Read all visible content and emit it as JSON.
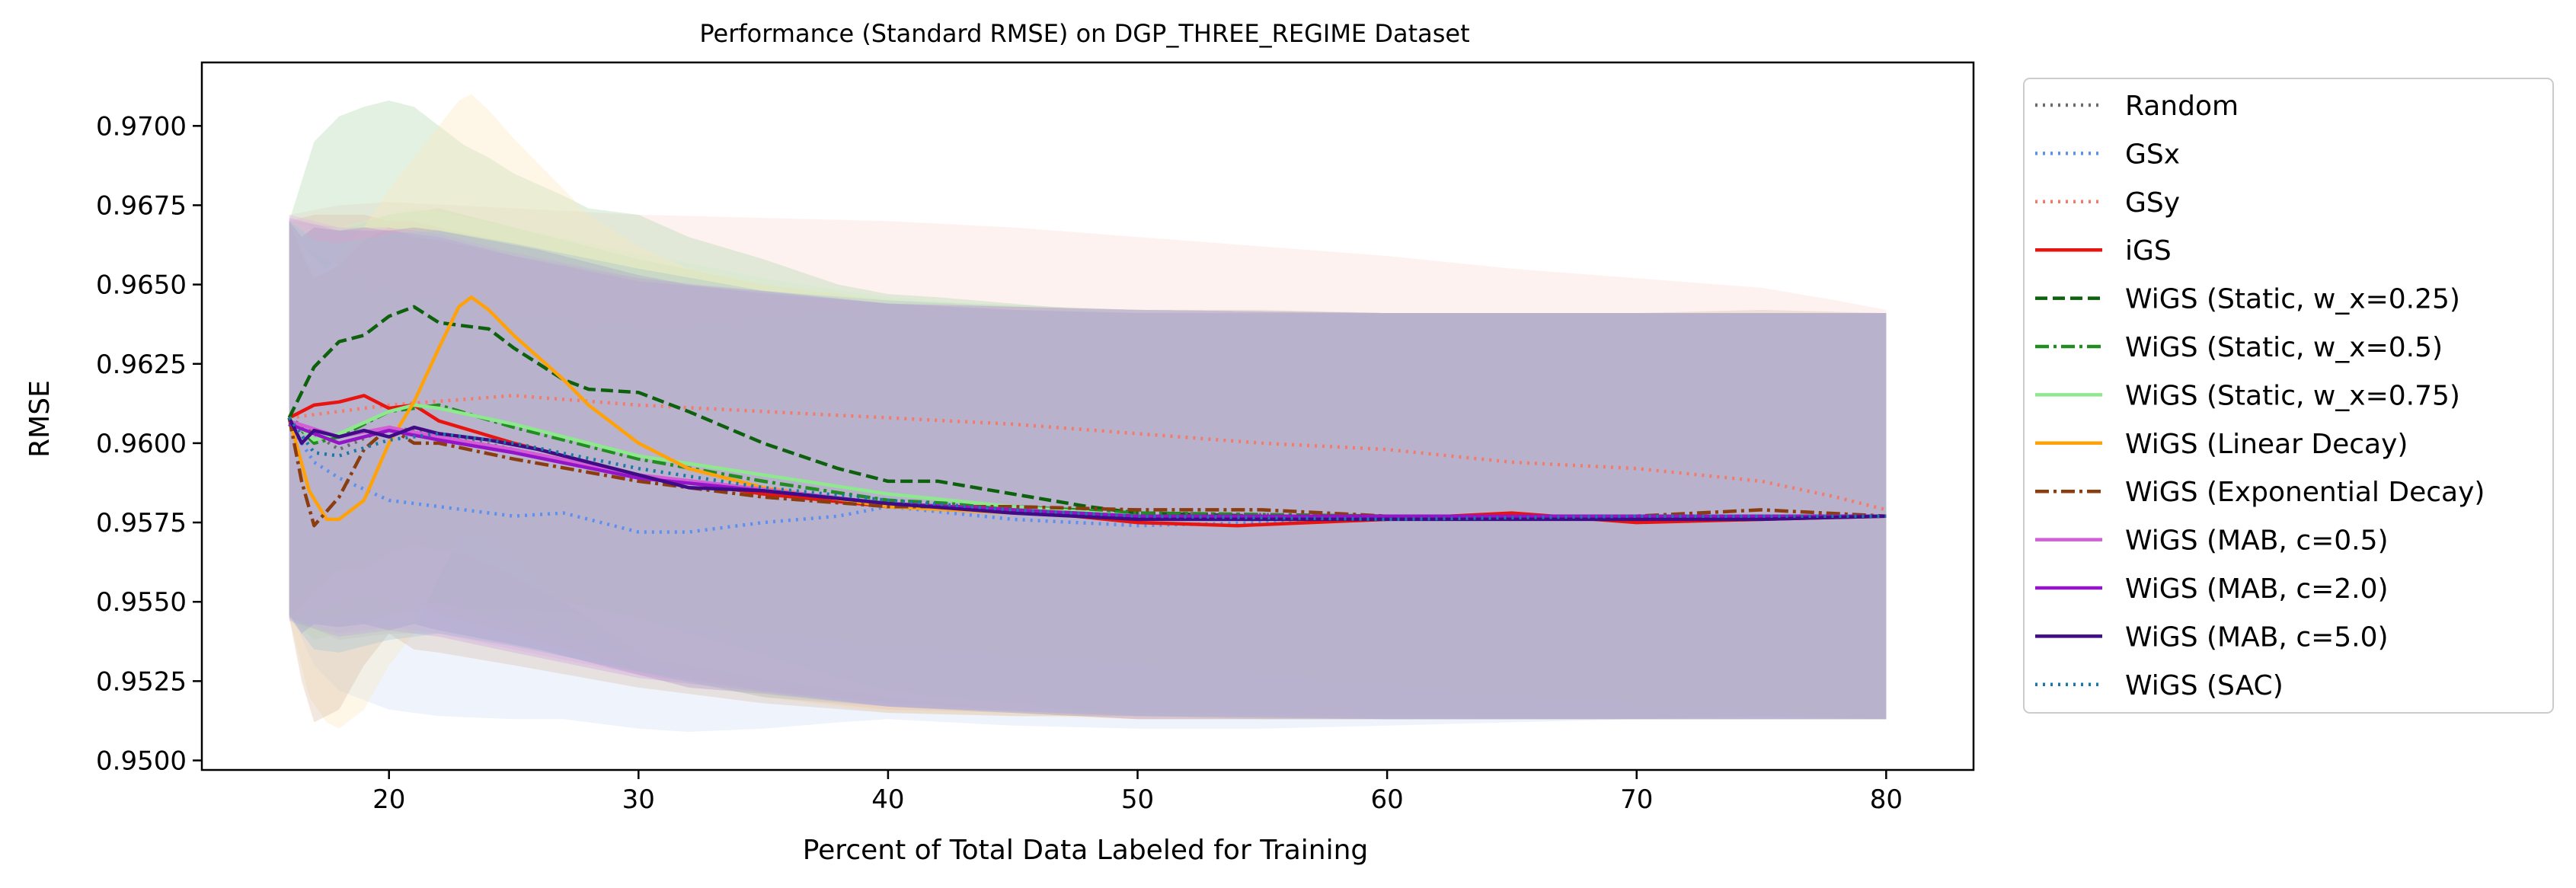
{
  "chart_data": {
    "type": "line",
    "title": "Performance (Standard RMSE) on DGP_THREE_REGIME Dataset",
    "xlabel": "Percent of Total Data Labeled for Training",
    "ylabel": "RMSE",
    "xlim": [
      12.5,
      83.5
    ],
    "ylim": [
      0.9497,
      0.972
    ],
    "xticks": [
      20,
      30,
      40,
      50,
      60,
      70,
      80
    ],
    "yticks": [
      0.95,
      0.9525,
      0.955,
      0.9575,
      0.96,
      0.9625,
      0.965,
      0.9675,
      0.97
    ],
    "grid": false,
    "legend_position": "outside-right",
    "series": [
      {
        "name": "Random",
        "color": "#6b6b6b",
        "style": "dotted",
        "x": [
          16,
          18,
          20,
          22,
          25,
          30,
          35,
          40,
          45,
          50,
          60,
          70,
          80
        ],
        "y": [
          0.9608,
          0.9598,
          0.9605,
          0.9603,
          0.9598,
          0.959,
          0.9585,
          0.9581,
          0.9579,
          0.9578,
          0.9577,
          0.9577,
          0.9577
        ],
        "band_color": "#a8a8a8",
        "upper": [
          0.967,
          0.9668,
          0.9666,
          0.9664,
          0.966,
          0.9652,
          0.9647,
          0.9644,
          0.9643,
          0.9642,
          0.9641,
          0.9641,
          0.9641
        ],
        "lower": [
          0.9545,
          0.9538,
          0.954,
          0.954,
          0.9536,
          0.9528,
          0.9522,
          0.9518,
          0.9516,
          0.9515,
          0.9514,
          0.9513,
          0.9513
        ]
      },
      {
        "name": "GSx",
        "color": "#5b8ff0",
        "style": "dotted",
        "x": [
          16,
          17,
          18,
          20,
          22,
          25,
          27,
          30,
          32,
          35,
          38,
          40,
          45,
          50,
          55,
          60,
          70,
          80
        ],
        "y": [
          0.9606,
          0.9594,
          0.9589,
          0.9582,
          0.958,
          0.9577,
          0.9578,
          0.9572,
          0.9572,
          0.9575,
          0.9577,
          0.958,
          0.9576,
          0.9574,
          0.9575,
          0.9576,
          0.9577,
          0.9577
        ],
        "band_color": "#c9d9f7",
        "upper": [
          0.9665,
          0.966,
          0.9656,
          0.9648,
          0.9645,
          0.964,
          0.964,
          0.9637,
          0.9637,
          0.964,
          0.9642,
          0.9644,
          0.9641,
          0.964,
          0.964,
          0.9641,
          0.9641,
          0.9641
        ],
        "lower": [
          0.9547,
          0.953,
          0.9522,
          0.9516,
          0.9514,
          0.9513,
          0.9513,
          0.951,
          0.9509,
          0.951,
          0.9512,
          0.9513,
          0.9511,
          0.951,
          0.951,
          0.9511,
          0.9513,
          0.9513
        ]
      },
      {
        "name": "GSy",
        "color": "#f47a6a",
        "style": "dotted",
        "x": [
          16,
          18,
          20,
          25,
          30,
          35,
          40,
          45,
          50,
          55,
          60,
          65,
          70,
          75,
          78,
          80
        ],
        "y": [
          0.9608,
          0.961,
          0.9612,
          0.9615,
          0.9612,
          0.961,
          0.9608,
          0.9606,
          0.9603,
          0.96,
          0.9598,
          0.9594,
          0.9592,
          0.9588,
          0.9583,
          0.9579
        ],
        "band_color": "#f9d6cf",
        "upper": [
          0.9672,
          0.9675,
          0.9676,
          0.9674,
          0.9672,
          0.9671,
          0.967,
          0.9668,
          0.9665,
          0.9662,
          0.9659,
          0.9655,
          0.9652,
          0.9649,
          0.9645,
          0.9642
        ],
        "lower": [
          0.9545,
          0.9545,
          0.9547,
          0.9548,
          0.9544,
          0.954,
          0.9536,
          0.9533,
          0.953,
          0.9527,
          0.9524,
          0.952,
          0.9518,
          0.9515,
          0.9514,
          0.9513
        ]
      },
      {
        "name": "iGS",
        "color": "#e8140f",
        "style": "solid",
        "x": [
          16,
          17,
          18,
          19,
          20,
          21,
          22,
          25,
          30,
          35,
          40,
          45,
          50,
          54,
          60,
          65,
          70,
          75,
          80
        ],
        "y": [
          0.9608,
          0.9612,
          0.9613,
          0.9615,
          0.9611,
          0.9612,
          0.9607,
          0.96,
          0.959,
          0.9584,
          0.958,
          0.9579,
          0.9575,
          0.9574,
          0.9576,
          0.9578,
          0.9575,
          0.9576,
          0.9577
        ],
        "band_color": "#f4b0a8",
        "upper": [
          0.967,
          0.9672,
          0.9672,
          0.9672,
          0.967,
          0.967,
          0.9668,
          0.9663,
          0.9655,
          0.9648,
          0.9644,
          0.9643,
          0.9641,
          0.9641,
          0.9641,
          0.9641,
          0.9641,
          0.9641,
          0.9641
        ],
        "lower": [
          0.9545,
          0.9548,
          0.955,
          0.9552,
          0.955,
          0.955,
          0.9546,
          0.954,
          0.9528,
          0.952,
          0.9516,
          0.9515,
          0.9513,
          0.9513,
          0.9513,
          0.9513,
          0.9513,
          0.9513,
          0.9513
        ]
      },
      {
        "name": "WiGS (Static, w_x=0.25)",
        "color": "#0d610d",
        "style": "dashed",
        "x": [
          16,
          17,
          18,
          19,
          20,
          21,
          22,
          23,
          24,
          25,
          27,
          28,
          30,
          32,
          35,
          38,
          40,
          42,
          45,
          48,
          50,
          55,
          60,
          70,
          80
        ],
        "y": [
          0.9608,
          0.9624,
          0.9632,
          0.9634,
          0.964,
          0.9643,
          0.9638,
          0.9637,
          0.9636,
          0.963,
          0.962,
          0.9617,
          0.9616,
          0.961,
          0.96,
          0.9592,
          0.9588,
          0.9588,
          0.9584,
          0.958,
          0.9578,
          0.9577,
          0.9577,
          0.9577,
          0.9577
        ],
        "band_color": "#a8d2a6",
        "upper": [
          0.967,
          0.9695,
          0.9703,
          0.9706,
          0.9708,
          0.9706,
          0.97,
          0.9694,
          0.969,
          0.9685,
          0.9678,
          0.9674,
          0.9672,
          0.9665,
          0.9658,
          0.965,
          0.9647,
          0.9646,
          0.9644,
          0.9642,
          0.9641,
          0.9641,
          0.9641,
          0.9641,
          0.9641
        ],
        "lower": [
          0.9545,
          0.9553,
          0.956,
          0.956,
          0.9565,
          0.9568,
          0.9566,
          0.9565,
          0.9562,
          0.9558,
          0.955,
          0.9548,
          0.9545,
          0.954,
          0.9533,
          0.9526,
          0.9522,
          0.952,
          0.9518,
          0.9515,
          0.9514,
          0.9513,
          0.9513,
          0.9513,
          0.9513
        ]
      },
      {
        "name": "WiGS (Static, w_x=0.5)",
        "color": "#228b22",
        "style": "dashdot",
        "x": [
          16,
          17,
          18,
          20,
          22,
          25,
          30,
          35,
          40,
          50,
          60,
          70,
          80
        ],
        "y": [
          0.9608,
          0.96,
          0.9602,
          0.961,
          0.9612,
          0.9605,
          0.9595,
          0.9588,
          0.9582,
          0.9578,
          0.9577,
          0.9577,
          0.9577
        ],
        "band_color": "#b6dcb2",
        "upper": [
          0.967,
          0.9666,
          0.9667,
          0.9672,
          0.9674,
          0.9668,
          0.9658,
          0.965,
          0.9645,
          0.9642,
          0.9641,
          0.9641,
          0.9641
        ],
        "lower": [
          0.9545,
          0.9538,
          0.954,
          0.9546,
          0.955,
          0.9542,
          0.9532,
          0.9524,
          0.9518,
          0.9514,
          0.9513,
          0.9513,
          0.9513
        ]
      },
      {
        "name": "WiGS (Static, w_x=0.75)",
        "color": "#8ee88e",
        "style": "solid",
        "x": [
          16,
          17,
          18,
          20,
          21,
          22,
          25,
          28,
          30,
          35,
          40,
          45,
          50,
          60,
          70,
          80
        ],
        "y": [
          0.9608,
          0.9601,
          0.9603,
          0.961,
          0.9612,
          0.9611,
          0.9606,
          0.96,
          0.9596,
          0.959,
          0.9584,
          0.958,
          0.9577,
          0.9577,
          0.9577,
          0.9577
        ],
        "band_color": "#cfecc9",
        "upper": [
          0.967,
          0.9668,
          0.9668,
          0.9672,
          0.9674,
          0.9673,
          0.9668,
          0.9663,
          0.966,
          0.9652,
          0.9646,
          0.9643,
          0.9642,
          0.9641,
          0.9641,
          0.9641
        ],
        "lower": [
          0.9545,
          0.954,
          0.9541,
          0.9546,
          0.955,
          0.9549,
          0.9544,
          0.9538,
          0.9533,
          0.9526,
          0.952,
          0.9516,
          0.9514,
          0.9513,
          0.9513,
          0.9513
        ]
      },
      {
        "name": "WiGS (Linear Decay)",
        "color": "#ffa20a",
        "style": "solid",
        "x": [
          16,
          16.8,
          17.5,
          18,
          19,
          20,
          21,
          22,
          22.8,
          23.3,
          24,
          25,
          26,
          27,
          28,
          30,
          32,
          35,
          40,
          45,
          50,
          60,
          70,
          80
        ],
        "y": [
          0.9608,
          0.9585,
          0.9576,
          0.9576,
          0.9582,
          0.96,
          0.9613,
          0.963,
          0.9643,
          0.9646,
          0.9642,
          0.9634,
          0.9627,
          0.962,
          0.9612,
          0.96,
          0.9592,
          0.9586,
          0.958,
          0.9578,
          0.9577,
          0.9577,
          0.9577,
          0.9577
        ],
        "band_color": "#fde7b8",
        "upper": [
          0.967,
          0.966,
          0.9655,
          0.966,
          0.9668,
          0.968,
          0.969,
          0.97,
          0.9708,
          0.971,
          0.9705,
          0.9696,
          0.9688,
          0.968,
          0.9672,
          0.9662,
          0.9655,
          0.965,
          0.9645,
          0.9643,
          0.9642,
          0.9641,
          0.9641,
          0.9641
        ],
        "lower": [
          0.9545,
          0.952,
          0.9512,
          0.951,
          0.9516,
          0.953,
          0.954,
          0.9558,
          0.957,
          0.9572,
          0.957,
          0.9563,
          0.9556,
          0.955,
          0.9545,
          0.9534,
          0.9526,
          0.952,
          0.9515,
          0.9514,
          0.9513,
          0.9513,
          0.9513,
          0.9513
        ]
      },
      {
        "name": "WiGS (Exponential Decay)",
        "color": "#8b3d0f",
        "style": "dashdot",
        "x": [
          16,
          16.5,
          17,
          18,
          19,
          20,
          21,
          22,
          25,
          30,
          35,
          40,
          45,
          50,
          55,
          60,
          65,
          70,
          75,
          80
        ],
        "y": [
          0.9608,
          0.9588,
          0.9574,
          0.9583,
          0.9598,
          0.9605,
          0.96,
          0.96,
          0.9595,
          0.9588,
          0.9583,
          0.958,
          0.958,
          0.9579,
          0.9579,
          0.9577,
          0.9576,
          0.9577,
          0.9579,
          0.9577
        ],
        "band_color": "#d8b7a0",
        "upper": [
          0.967,
          0.966,
          0.9652,
          0.9656,
          0.9664,
          0.9668,
          0.9665,
          0.9664,
          0.9659,
          0.9652,
          0.9647,
          0.9644,
          0.9643,
          0.9642,
          0.9642,
          0.9641,
          0.9641,
          0.9641,
          0.9642,
          0.9641
        ],
        "lower": [
          0.9545,
          0.9525,
          0.9512,
          0.9516,
          0.953,
          0.954,
          0.9535,
          0.9534,
          0.953,
          0.9523,
          0.9518,
          0.9515,
          0.9514,
          0.9514,
          0.9514,
          0.9513,
          0.9513,
          0.9513,
          0.9514,
          0.9513
        ]
      },
      {
        "name": "WiGS (MAB, c=0.5)",
        "color": "#d45ed6",
        "style": "solid",
        "x": [
          16,
          18,
          20,
          22,
          25,
          30,
          40,
          50,
          60,
          70,
          80
        ],
        "y": [
          0.9607,
          0.9602,
          0.9605,
          0.9602,
          0.9598,
          0.959,
          0.9581,
          0.9577,
          0.9577,
          0.9577,
          0.9577
        ],
        "band_color": "#e4b0e6",
        "upper": [
          0.9672,
          0.9668,
          0.9668,
          0.9666,
          0.966,
          0.9652,
          0.9644,
          0.9642,
          0.9641,
          0.9641,
          0.9641
        ],
        "lower": [
          0.9545,
          0.954,
          0.9542,
          0.954,
          0.9535,
          0.9527,
          0.9517,
          0.9514,
          0.9513,
          0.9513,
          0.9513
        ]
      },
      {
        "name": "WiGS (MAB, c=2.0)",
        "color": "#9414c8",
        "style": "solid",
        "x": [
          16,
          18,
          20,
          22,
          25,
          30,
          40,
          50,
          60,
          70,
          80
        ],
        "y": [
          0.9606,
          0.96,
          0.9604,
          0.9601,
          0.9597,
          0.9589,
          0.9581,
          0.9577,
          0.9577,
          0.9577,
          0.9577
        ],
        "band_color": "#c99ae0",
        "upper": [
          0.9671,
          0.9667,
          0.9667,
          0.9665,
          0.9659,
          0.9651,
          0.9644,
          0.9642,
          0.9641,
          0.9641,
          0.9641
        ],
        "lower": [
          0.9544,
          0.9539,
          0.9541,
          0.9539,
          0.9534,
          0.9526,
          0.9517,
          0.9514,
          0.9513,
          0.9513,
          0.9513
        ]
      },
      {
        "name": "WiGS (MAB, c=5.0)",
        "color": "#3f0b86",
        "style": "solid",
        "x": [
          16,
          16.5,
          17,
          18,
          19,
          20,
          21,
          22,
          24,
          26,
          28,
          30,
          32,
          35,
          40,
          45,
          50,
          55,
          60,
          65,
          70,
          75,
          80
        ],
        "y": [
          0.9608,
          0.96,
          0.9604,
          0.9602,
          0.9604,
          0.9602,
          0.9605,
          0.9603,
          0.9601,
          0.9598,
          0.9594,
          0.959,
          0.9586,
          0.9585,
          0.9581,
          0.9578,
          0.9576,
          0.9576,
          0.9576,
          0.9576,
          0.9576,
          0.9576,
          0.9577
        ],
        "band_color": "#a58bc4",
        "upper": [
          0.967,
          0.9665,
          0.9668,
          0.9667,
          0.9668,
          0.9667,
          0.9668,
          0.9667,
          0.9664,
          0.9661,
          0.9657,
          0.9653,
          0.965,
          0.9648,
          0.9644,
          0.9642,
          0.9641,
          0.9641,
          0.9641,
          0.9641,
          0.9641,
          0.9641,
          0.9641
        ],
        "lower": [
          0.9546,
          0.954,
          0.9543,
          0.9542,
          0.9543,
          0.9541,
          0.9543,
          0.9541,
          0.9538,
          0.9535,
          0.9531,
          0.9527,
          0.9523,
          0.9521,
          0.9517,
          0.9515,
          0.9513,
          0.9513,
          0.9513,
          0.9513,
          0.9513,
          0.9513,
          0.9513
        ]
      },
      {
        "name": "WiGS (SAC)",
        "color": "#1a78a8",
        "style": "dotted",
        "x": [
          16,
          17,
          18,
          20,
          22,
          25,
          30,
          35,
          40,
          45,
          50,
          60,
          70,
          80
        ],
        "y": [
          0.9608,
          0.9597,
          0.9596,
          0.9601,
          0.9603,
          0.96,
          0.9592,
          0.9586,
          0.9582,
          0.9579,
          0.9577,
          0.9576,
          0.9577,
          0.9577
        ],
        "band_color": "#9ec4d6",
        "upper": [
          0.967,
          0.9664,
          0.9663,
          0.9666,
          0.9667,
          0.9663,
          0.9655,
          0.9648,
          0.9645,
          0.9643,
          0.9642,
          0.9641,
          0.9641,
          0.9641
        ],
        "lower": [
          0.9545,
          0.9535,
          0.9534,
          0.9538,
          0.954,
          0.9536,
          0.9528,
          0.952,
          0.9517,
          0.9515,
          0.9514,
          0.9513,
          0.9513,
          0.9513
        ]
      }
    ]
  }
}
